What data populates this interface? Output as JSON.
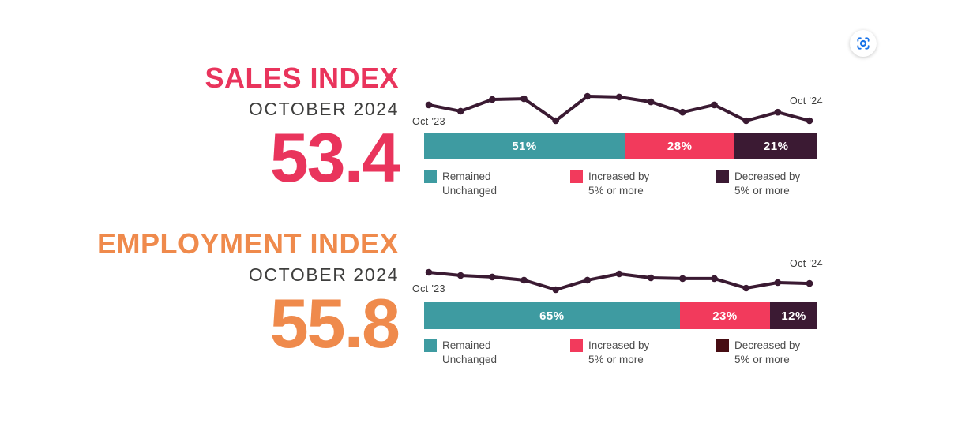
{
  "page": {
    "background": "#ffffff",
    "screenshot_button": {
      "icon": "screenshot-region-icon",
      "color": "#1a73e8"
    }
  },
  "sections": [
    {
      "id": "sales",
      "title": "SALES INDEX",
      "subtitle": "OCTOBER 2024",
      "value": "53.4",
      "accent_color": "#e9345c",
      "sparkline": {
        "color": "#3a1a32",
        "start_label": "Oct '23",
        "end_label": "Oct '24",
        "values_relative_0_100": [
          65,
          39,
          87,
          90,
          0,
          100,
          97,
          77,
          35,
          65,
          0,
          35,
          0
        ]
      },
      "bar": {
        "segments": [
          {
            "label": "51%",
            "value": 51,
            "color": "#3e9ba1"
          },
          {
            "label": "28%",
            "value": 28,
            "color": "#f23a5c"
          },
          {
            "label": "21%",
            "value": 21,
            "color": "#3b1a33"
          }
        ]
      },
      "legend": [
        {
          "line1": "Remained",
          "line2": "Unchanged",
          "color": "#3e9ba1"
        },
        {
          "line1": "Increased by",
          "line2": "5% or more",
          "color": "#f23a5c"
        },
        {
          "line1": "Decreased by",
          "line2": "5% or more",
          "color": "#3b1a33"
        }
      ]
    },
    {
      "id": "employment",
      "title": "EMPLOYMENT INDEX",
      "subtitle": "OCTOBER 2024",
      "value": "55.8",
      "accent_color": "#ef8a4c",
      "sparkline": {
        "color": "#3a1a32",
        "start_label": "Oct '23",
        "end_label": "Oct '24",
        "values_relative_0_100": [
          100,
          82,
          73,
          55,
          0,
          55,
          91,
          68,
          64,
          64,
          9,
          41,
          36
        ]
      },
      "bar": {
        "segments": [
          {
            "label": "65%",
            "value": 65,
            "color": "#3e9ba1"
          },
          {
            "label": "23%",
            "value": 23,
            "color": "#f23a5c"
          },
          {
            "label": "12%",
            "value": 12,
            "color": "#3b1a33"
          }
        ]
      },
      "legend": [
        {
          "line1": "Remained",
          "line2": "Unchanged",
          "color": "#3e9ba1"
        },
        {
          "line1": "Increased by",
          "line2": "5% or more",
          "color": "#f23a5c"
        },
        {
          "line1": "Decreased by",
          "line2": "5% or more",
          "color": "#470d13"
        }
      ]
    }
  ],
  "chart_data": [
    {
      "type": "line",
      "title": "Sales Index monthly trend (sparkline)",
      "x_start_label": "Oct '23",
      "x_end_label": "Oct '24",
      "n_points": 13,
      "values_relative_0_100": [
        65,
        39,
        87,
        90,
        0,
        100,
        97,
        77,
        35,
        65,
        0,
        35,
        0
      ],
      "latest_headline_value": 53.4,
      "note": "no value axis shown; values estimated from point heights (100 = highest point, 0 = lowest)",
      "line_color": "#3a1a32",
      "grid": false,
      "legend_position": "none"
    },
    {
      "type": "bar",
      "subtype": "horizontal-stacked-100pct",
      "title": "Sales Index response breakdown",
      "categories": [
        "Remained Unchanged",
        "Increased by 5% or more",
        "Decreased by 5% or more"
      ],
      "values": [
        51,
        28,
        21
      ],
      "unit": "%",
      "colors": [
        "#3e9ba1",
        "#f23a5c",
        "#3b1a33"
      ],
      "data_labels": [
        "51%",
        "28%",
        "21%"
      ],
      "legend_position": "below"
    },
    {
      "type": "line",
      "title": "Employment Index monthly trend (sparkline)",
      "x_start_label": "Oct '23",
      "x_end_label": "Oct '24",
      "n_points": 13,
      "values_relative_0_100": [
        100,
        82,
        73,
        55,
        0,
        55,
        91,
        68,
        64,
        64,
        9,
        41,
        36
      ],
      "latest_headline_value": 55.8,
      "note": "no value axis shown; values estimated from point heights (100 = highest point, 0 = lowest)",
      "line_color": "#3a1a32",
      "grid": false,
      "legend_position": "none"
    },
    {
      "type": "bar",
      "subtype": "horizontal-stacked-100pct",
      "title": "Employment Index response breakdown",
      "categories": [
        "Remained Unchanged",
        "Increased by 5% or more",
        "Decreased by 5% or more"
      ],
      "values": [
        65,
        23,
        12
      ],
      "unit": "%",
      "colors": [
        "#3e9ba1",
        "#f23a5c",
        "#3b1a33"
      ],
      "data_labels": [
        "65%",
        "23%",
        "12%"
      ],
      "legend_position": "below"
    }
  ]
}
